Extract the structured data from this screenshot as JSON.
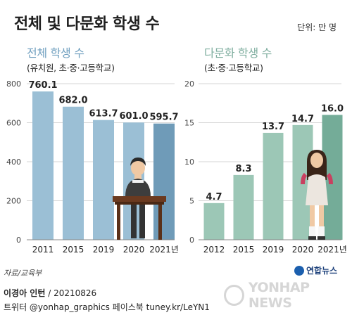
{
  "title": "전체 및 다문화 학생 수",
  "unit": "단위: 만 명",
  "source": "자료/교육부",
  "logo_text": "연합뉴스",
  "watermark": "YONHAP NEWS",
  "credit": {
    "author": "이경아 인턴",
    "date": " / 20210826",
    "line2": "트위터 @yonhap_graphics  페이스북 tuney.kr/LeYN1"
  },
  "colors": {
    "left_bar": "#9bbfd5",
    "left_bar_last": "#6f9bb8",
    "right_bar": "#9cc7b6",
    "right_bar_last": "#74ac98",
    "grid": "#d5d5d5"
  },
  "chart_data": [
    {
      "type": "bar",
      "title": "전체 학생 수",
      "subtitle": "(유치원, 초·중·고등학교)",
      "categories": [
        "2011",
        "2015",
        "2019",
        "2020",
        "2021년"
      ],
      "values": [
        760.1,
        682.0,
        613.7,
        601.0,
        595.7
      ],
      "value_labels": [
        "760.1",
        "682.0",
        "613.7",
        "601.0",
        "595.7"
      ],
      "yticks": [
        "0",
        "200",
        "400",
        "600",
        "800"
      ],
      "ylim": [
        0,
        800
      ],
      "grid": true
    },
    {
      "type": "bar",
      "title": "다문화 학생 수",
      "subtitle": "(초·중·고등학교)",
      "categories": [
        "2012",
        "2015",
        "2019",
        "2020",
        "2021년"
      ],
      "values": [
        4.7,
        8.3,
        13.7,
        14.7,
        16.0
      ],
      "value_labels": [
        "4.7",
        "8.3",
        "13.7",
        "14.7",
        "16.0"
      ],
      "yticks": [
        "0",
        "5",
        "10",
        "15",
        "20"
      ],
      "ylim": [
        0,
        20
      ],
      "grid": true
    }
  ]
}
